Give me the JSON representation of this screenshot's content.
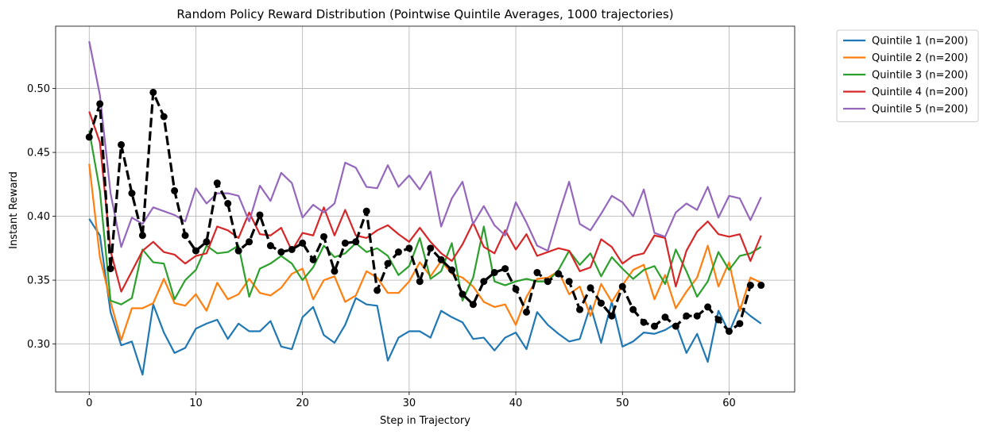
{
  "chart_data": {
    "type": "line",
    "title": "Random Policy Reward Distribution (Pointwise Quintile Averages, 1000 trajectories)",
    "xlabel": "Step in Trajectory",
    "ylabel": "Instant Reward",
    "xlim": [
      -3.15,
      66.15
    ],
    "ylim": [
      0.2625,
      0.5488
    ],
    "xticks": [
      0,
      10,
      20,
      30,
      40,
      50,
      60
    ],
    "yticks": [
      0.3,
      0.35,
      0.4,
      0.45,
      0.5
    ],
    "ytick_labels": [
      "0.30",
      "0.35",
      "0.40",
      "0.45",
      "0.50"
    ],
    "grid": true,
    "legend_position": "outside-top-right",
    "series": [
      {
        "name": "Quintile 1 (n=200)",
        "color": "#1f77b4",
        "style": "solid",
        "values": [
          0.398,
          0.385,
          0.325,
          0.299,
          0.302,
          0.276,
          0.331,
          0.309,
          0.293,
          0.297,
          0.312,
          0.316,
          0.319,
          0.304,
          0.316,
          0.31,
          0.31,
          0.318,
          0.298,
          0.296,
          0.321,
          0.329,
          0.307,
          0.301,
          0.315,
          0.336,
          0.331,
          0.33,
          0.287,
          0.305,
          0.31,
          0.31,
          0.305,
          0.326,
          0.321,
          0.317,
          0.304,
          0.305,
          0.295,
          0.305,
          0.309,
          0.296,
          0.325,
          0.315,
          0.308,
          0.302,
          0.304,
          0.33,
          0.301,
          0.333,
          0.298,
          0.302,
          0.309,
          0.308,
          0.311,
          0.316,
          0.293,
          0.308,
          0.286,
          0.326,
          0.309,
          0.329,
          0.322,
          0.316
        ]
      },
      {
        "name": "Quintile 2 (n=200)",
        "color": "#ff7f0e",
        "style": "solid",
        "values": [
          0.441,
          0.368,
          0.333,
          0.303,
          0.328,
          0.328,
          0.332,
          0.351,
          0.332,
          0.33,
          0.339,
          0.326,
          0.348,
          0.335,
          0.339,
          0.351,
          0.34,
          0.338,
          0.344,
          0.355,
          0.359,
          0.335,
          0.35,
          0.353,
          0.333,
          0.338,
          0.357,
          0.352,
          0.34,
          0.34,
          0.349,
          0.364,
          0.353,
          0.365,
          0.355,
          0.352,
          0.345,
          0.333,
          0.329,
          0.331,
          0.315,
          0.337,
          0.351,
          0.352,
          0.357,
          0.339,
          0.345,
          0.322,
          0.347,
          0.333,
          0.346,
          0.358,
          0.362,
          0.335,
          0.354,
          0.328,
          0.341,
          0.352,
          0.377,
          0.345,
          0.364,
          0.326,
          0.352,
          0.348
        ]
      },
      {
        "name": "Quintile 3 (n=200)",
        "color": "#2ca02c",
        "style": "solid",
        "values": [
          0.467,
          0.42,
          0.334,
          0.331,
          0.336,
          0.374,
          0.364,
          0.363,
          0.335,
          0.35,
          0.358,
          0.377,
          0.371,
          0.372,
          0.377,
          0.337,
          0.359,
          0.363,
          0.369,
          0.363,
          0.35,
          0.36,
          0.377,
          0.368,
          0.371,
          0.379,
          0.372,
          0.375,
          0.369,
          0.354,
          0.361,
          0.383,
          0.351,
          0.357,
          0.379,
          0.334,
          0.352,
          0.392,
          0.349,
          0.346,
          0.349,
          0.351,
          0.349,
          0.349,
          0.358,
          0.373,
          0.362,
          0.371,
          0.353,
          0.368,
          0.359,
          0.351,
          0.358,
          0.361,
          0.347,
          0.374,
          0.357,
          0.337,
          0.349,
          0.372,
          0.358,
          0.369,
          0.371,
          0.376
        ]
      },
      {
        "name": "Quintile 4 (n=200)",
        "color": "#d62728",
        "style": "solid",
        "values": [
          0.482,
          0.458,
          0.373,
          0.341,
          0.357,
          0.373,
          0.38,
          0.372,
          0.37,
          0.363,
          0.369,
          0.371,
          0.392,
          0.389,
          0.383,
          0.403,
          0.386,
          0.385,
          0.391,
          0.373,
          0.387,
          0.385,
          0.407,
          0.385,
          0.405,
          0.385,
          0.383,
          0.389,
          0.393,
          0.386,
          0.38,
          0.391,
          0.38,
          0.371,
          0.365,
          0.378,
          0.395,
          0.376,
          0.371,
          0.389,
          0.374,
          0.386,
          0.369,
          0.372,
          0.375,
          0.373,
          0.357,
          0.36,
          0.382,
          0.376,
          0.363,
          0.369,
          0.371,
          0.385,
          0.383,
          0.345,
          0.373,
          0.388,
          0.396,
          0.386,
          0.384,
          0.386,
          0.365,
          0.385
        ]
      },
      {
        "name": "Quintile 5 (n=200)",
        "color": "#9467bd",
        "style": "solid",
        "values": [
          0.537,
          0.495,
          0.418,
          0.376,
          0.399,
          0.394,
          0.407,
          0.404,
          0.401,
          0.396,
          0.422,
          0.41,
          0.418,
          0.418,
          0.416,
          0.396,
          0.424,
          0.412,
          0.434,
          0.426,
          0.399,
          0.409,
          0.403,
          0.41,
          0.442,
          0.438,
          0.423,
          0.422,
          0.44,
          0.423,
          0.432,
          0.421,
          0.435,
          0.392,
          0.414,
          0.427,
          0.394,
          0.408,
          0.393,
          0.385,
          0.411,
          0.395,
          0.377,
          0.373,
          0.401,
          0.427,
          0.394,
          0.389,
          0.402,
          0.416,
          0.411,
          0.4,
          0.421,
          0.387,
          0.384,
          0.403,
          0.41,
          0.405,
          0.423,
          0.399,
          0.416,
          0.414,
          0.397,
          0.415
        ]
      },
      {
        "name": "",
        "color": "#000000",
        "style": "dashed-markers",
        "values": [
          0.462,
          0.488,
          0.359,
          0.456,
          0.418,
          0.385,
          0.497,
          0.478,
          0.42,
          0.385,
          0.373,
          0.38,
          0.426,
          0.41,
          0.373,
          0.38,
          0.401,
          0.377,
          0.372,
          0.374,
          0.379,
          0.366,
          0.384,
          0.357,
          0.379,
          0.38,
          0.404,
          0.342,
          0.363,
          0.372,
          0.375,
          0.349,
          0.375,
          0.366,
          0.358,
          0.339,
          0.331,
          0.349,
          0.356,
          0.359,
          0.343,
          0.325,
          0.356,
          0.349,
          0.355,
          0.349,
          0.327,
          0.344,
          0.332,
          0.322,
          0.345,
          0.327,
          0.317,
          0.314,
          0.321,
          0.314,
          0.322,
          0.322,
          0.329,
          0.319,
          0.31,
          0.316,
          0.346,
          0.346
        ]
      }
    ]
  }
}
